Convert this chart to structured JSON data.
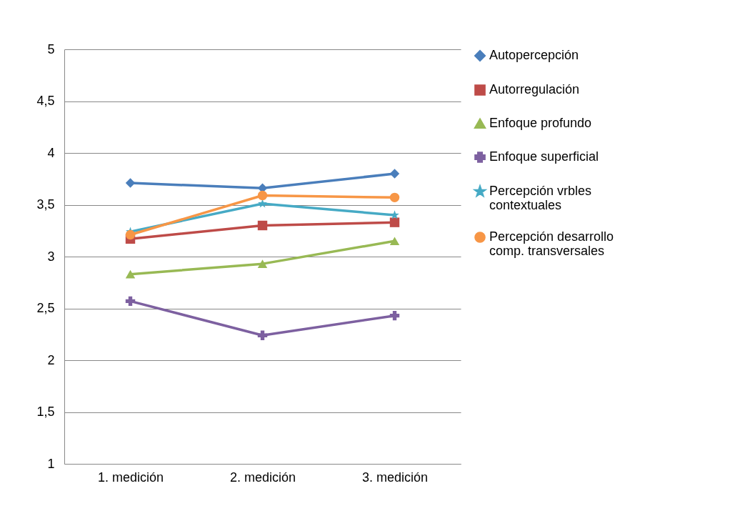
{
  "chart_data": {
    "type": "line",
    "categories": [
      "1. medición",
      "2. medición",
      "3. medición"
    ],
    "ylim": [
      1,
      5
    ],
    "yticks": [
      1,
      {
        "value": 1.5,
        "label": "1,5"
      },
      2,
      {
        "value": 2.5,
        "label": "2,5"
      },
      3,
      {
        "value": 3.5,
        "label": "3,5"
      },
      4,
      {
        "value": 4.5,
        "label": "4,5"
      },
      5
    ],
    "grid": "y",
    "legend": "right",
    "series": [
      {
        "name": "Autopercepción",
        "color": "#4a7ebb",
        "marker": "diamond",
        "values": [
          3.71,
          3.66,
          3.8
        ]
      },
      {
        "name": "Autorregulación",
        "color": "#be4b48",
        "marker": "square",
        "values": [
          3.17,
          3.3,
          3.33
        ]
      },
      {
        "name": "Enfoque profundo",
        "color": "#98b954",
        "marker": "triangle",
        "values": [
          2.83,
          2.93,
          3.15
        ]
      },
      {
        "name": "Enfoque superficial",
        "color": "#7d60a0",
        "marker": "cross",
        "values": [
          2.57,
          2.24,
          2.43
        ]
      },
      {
        "name": "Percepción vrbles contextuales",
        "color": "#46aac5",
        "marker": "star",
        "values": [
          3.24,
          3.51,
          3.4
        ]
      },
      {
        "name": "Percepción desarrollo comp. transversales",
        "color": "#f79646",
        "marker": "circle",
        "values": [
          3.21,
          3.59,
          3.57
        ]
      }
    ]
  }
}
